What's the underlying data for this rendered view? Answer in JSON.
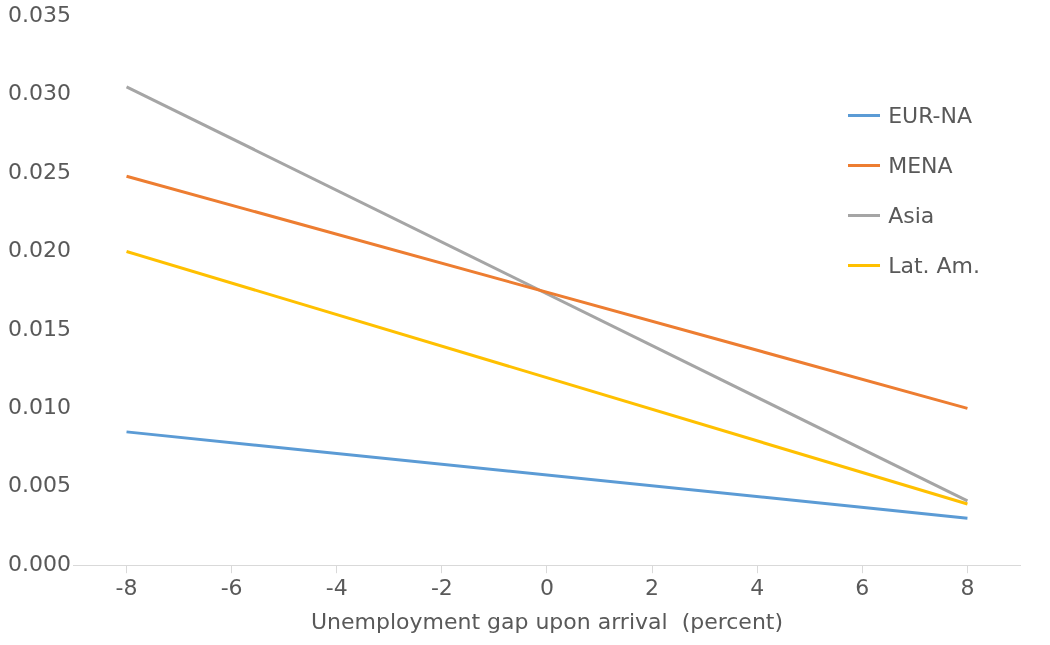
{
  "chart_data": {
    "type": "line",
    "xlabel": "Unemployment gap upon arrival  (percent)",
    "x": [
      -8,
      8
    ],
    "xlim": [
      -9,
      9
    ],
    "xticks": [
      -8,
      -6,
      -4,
      -2,
      0,
      2,
      4,
      6,
      8
    ],
    "ylim": [
      0,
      0.035
    ],
    "yticks": [
      {
        "value": 0,
        "label": "0.000"
      },
      {
        "value": 0.005,
        "label": "0.005"
      },
      {
        "value": 0.01,
        "label": "0.010"
      },
      {
        "value": 0.015,
        "label": "0.015"
      },
      {
        "value": 0.02,
        "label": "0.020"
      },
      {
        "value": 0.025,
        "label": "0.025"
      },
      {
        "value": 0.03,
        "label": "0.030"
      },
      {
        "value": 0.035,
        "label": "0.035"
      }
    ],
    "series": [
      {
        "name": "EUR-NA",
        "color": "#5b9bd5",
        "values": [
          0.0085,
          0.003
        ]
      },
      {
        "name": "MENA",
        "color": "#ed7d31",
        "values": [
          0.0248,
          0.01
        ]
      },
      {
        "name": "Asia",
        "color": "#a5a5a5",
        "values": [
          0.0305,
          0.0041
        ]
      },
      {
        "name": "Lat. Am.",
        "color": "#ffc000",
        "values": [
          0.02,
          0.0039
        ]
      }
    ],
    "grid": false,
    "legend": "top right",
    "marker": "none",
    "line_style": "solid"
  }
}
